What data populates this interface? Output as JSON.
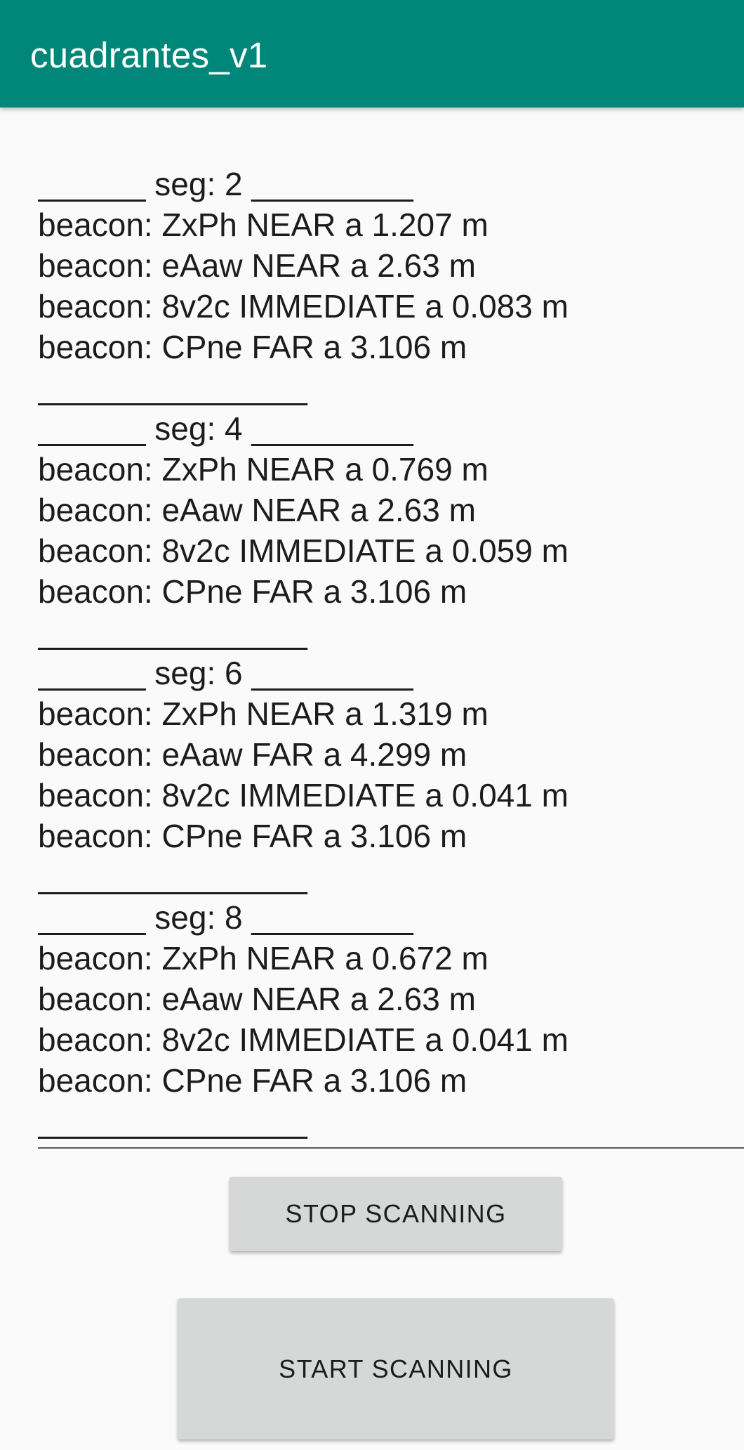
{
  "app_bar": {
    "title": "cuadrantes_v1",
    "color": "#00877a"
  },
  "log": {
    "lines": [
      "______ seg: 2 _________",
      "beacon: ZxPh NEAR a 1.207 m",
      "beacon: eAaw NEAR a 2.63 m",
      "beacon: 8v2c IMMEDIATE a 0.083 m",
      "beacon: CPne FAR a 3.106 m",
      "_______________",
      "______ seg: 4 _________",
      "beacon: ZxPh NEAR a 0.769 m",
      "beacon: eAaw NEAR a 2.63 m",
      "beacon: 8v2c IMMEDIATE a 0.059 m",
      "beacon: CPne FAR a 3.106 m",
      "_______________",
      "______ seg: 6 _________",
      "beacon: ZxPh NEAR a 1.319 m",
      "beacon: eAaw FAR a 4.299 m",
      "beacon: 8v2c IMMEDIATE a 0.041 m",
      "beacon: CPne FAR a 3.106 m",
      "_______________",
      "______ seg: 8 _________",
      "beacon: ZxPh NEAR a 0.672 m",
      "beacon: eAaw NEAR a 2.63 m",
      "beacon: 8v2c IMMEDIATE a 0.041 m",
      "beacon: CPne FAR a 3.106 m",
      "_______________"
    ]
  },
  "buttons": {
    "stop_label": "STOP SCANNING",
    "start_label": "START SCANNING"
  }
}
